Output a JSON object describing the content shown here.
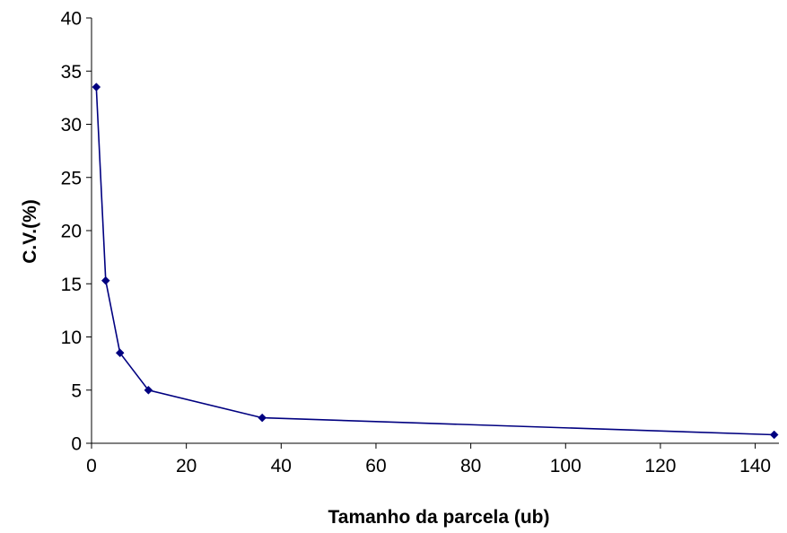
{
  "chart_data": {
    "type": "line",
    "title": "",
    "xlabel": "Tamanho da parcela (ub)",
    "ylabel": "C.V.(%)",
    "xlim": [
      0,
      145
    ],
    "ylim": [
      0,
      40
    ],
    "x_ticks": [
      0,
      20,
      40,
      60,
      80,
      100,
      120,
      140
    ],
    "y_ticks": [
      0,
      5,
      10,
      15,
      20,
      25,
      30,
      35,
      40
    ],
    "grid": false,
    "legend": "none",
    "series": [
      {
        "color": "#000080",
        "marker": "diamond",
        "x": [
          1,
          3,
          6,
          12,
          36,
          144
        ],
        "y": [
          33.5,
          15.3,
          8.5,
          5.0,
          2.4,
          0.8
        ]
      }
    ]
  }
}
